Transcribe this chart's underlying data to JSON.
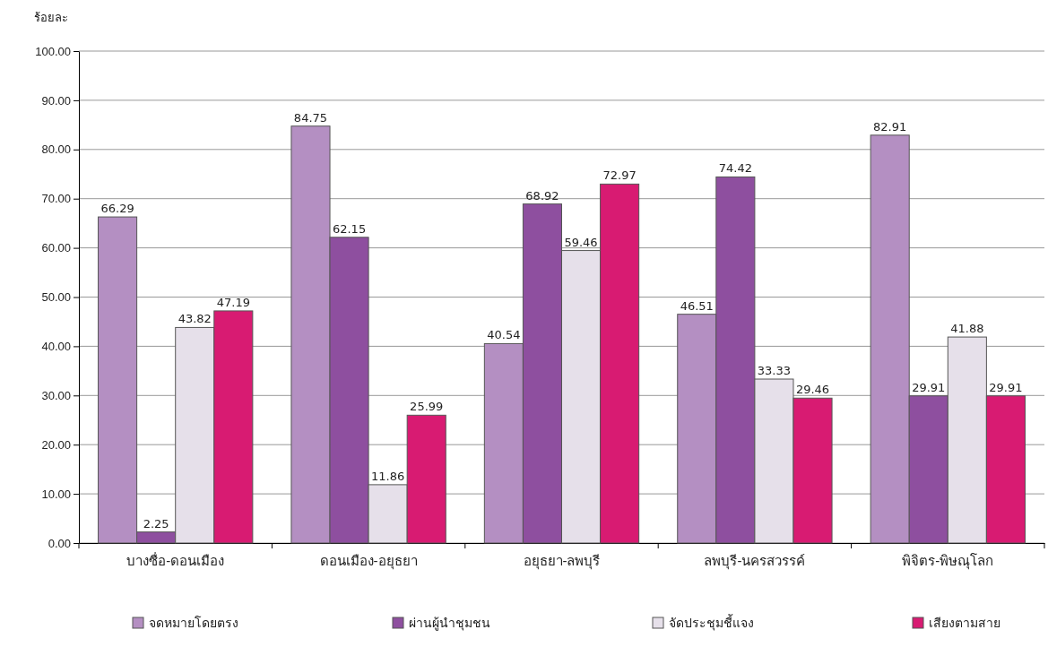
{
  "chart_data": {
    "type": "bar",
    "ylabel": "ร้อยละ",
    "categories": [
      "บางซื่อ-ดอนเมือง",
      "ดอนเมือง-อยุธยา",
      "อยุธยา-ลพบุรี",
      "ลพบุรี-นครสวรรค์",
      "พิจิตร-พิษณุโลก"
    ],
    "series": [
      {
        "name": "จดหมายโดยตรง",
        "color": "#b48fc2",
        "values": [
          66.29,
          84.75,
          40.54,
          46.51,
          82.91
        ]
      },
      {
        "name": "ผ่านผู้นำชุมชน",
        "color": "#8e4f9f",
        "values": [
          2.25,
          62.15,
          68.92,
          74.42,
          29.91
        ]
      },
      {
        "name": "จัดประชุมชี้แจง",
        "color": "#e6e0ea",
        "values": [
          43.82,
          11.86,
          59.46,
          33.33,
          41.88
        ]
      },
      {
        "name": "เสียงตามสาย",
        "color": "#d81b72",
        "values": [
          47.19,
          25.99,
          72.97,
          29.46,
          29.91
        ]
      }
    ],
    "ylim": [
      0,
      100
    ],
    "yticks": [
      {
        "value": 0,
        "label": "0.00"
      },
      {
        "value": 10,
        "label": "10.00"
      },
      {
        "value": 20,
        "label": "20.00"
      },
      {
        "value": 30,
        "label": "30.00"
      },
      {
        "value": 40,
        "label": "40.00"
      },
      {
        "value": 50,
        "label": "50.00"
      },
      {
        "value": 60,
        "label": "60.00"
      },
      {
        "value": 70,
        "label": "70.00"
      },
      {
        "value": 80,
        "label": "80.00"
      },
      {
        "value": 90,
        "label": "90.00"
      },
      {
        "value": 100,
        "label": "100.00"
      }
    ],
    "grid": "y",
    "legend": "bottom",
    "data_labels": true
  }
}
